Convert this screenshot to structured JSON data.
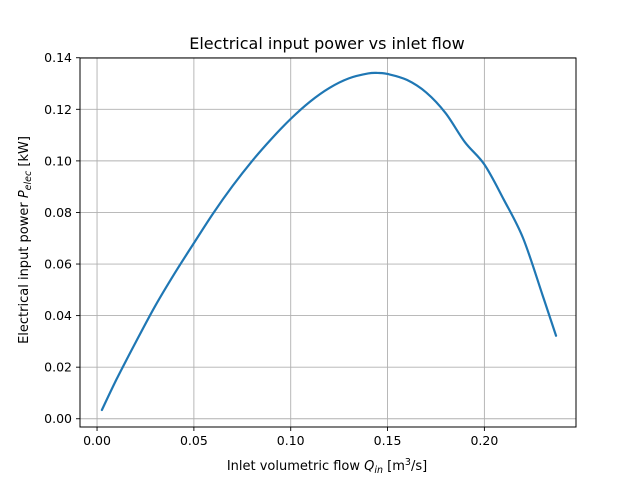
{
  "chart_data": {
    "type": "line",
    "title": "Electrical input power vs inlet flow",
    "xlabel": {
      "prefix": "Inlet volumetric flow ",
      "symbol": "Q",
      "subscript": "in",
      "unit_open": " [m",
      "unit_sup": "3",
      "unit_close": "/s]"
    },
    "ylabel": {
      "prefix": "Electrical input power ",
      "symbol": "P",
      "subscript": "elec",
      "unit": " [kW]"
    },
    "xlim": [
      -0.0088,
      0.2473
    ],
    "ylim": [
      -0.0032,
      0.1399
    ],
    "xticks": [
      0.0,
      0.05,
      0.1,
      0.15,
      0.2
    ],
    "xtick_labels": [
      "0.00",
      "0.05",
      "0.10",
      "0.15",
      "0.20"
    ],
    "yticks": [
      0.0,
      0.02,
      0.04,
      0.06,
      0.08,
      0.1,
      0.12,
      0.14
    ],
    "ytick_labels": [
      "0.00",
      "0.02",
      "0.04",
      "0.06",
      "0.08",
      "0.10",
      "0.12",
      "0.14"
    ],
    "grid": true,
    "series": [
      {
        "color": "#1f77b4",
        "x": [
          0.0025,
          0.01,
          0.02,
          0.03,
          0.04,
          0.05,
          0.06,
          0.07,
          0.08,
          0.09,
          0.1,
          0.11,
          0.12,
          0.13,
          0.14,
          0.145,
          0.15,
          0.16,
          0.17,
          0.18,
          0.19,
          0.2,
          0.21,
          0.22,
          0.23,
          0.237
        ],
        "y": [
          0.0034,
          0.0152,
          0.0297,
          0.0437,
          0.0563,
          0.0681,
          0.0797,
          0.0903,
          0.0999,
          0.1085,
          0.1163,
          0.123,
          0.1283,
          0.132,
          0.1339,
          0.1341,
          0.1337,
          0.1314,
          0.1265,
          0.1185,
          0.1072,
          0.0986,
          0.085,
          0.07,
          0.048,
          0.0322
        ]
      }
    ]
  }
}
